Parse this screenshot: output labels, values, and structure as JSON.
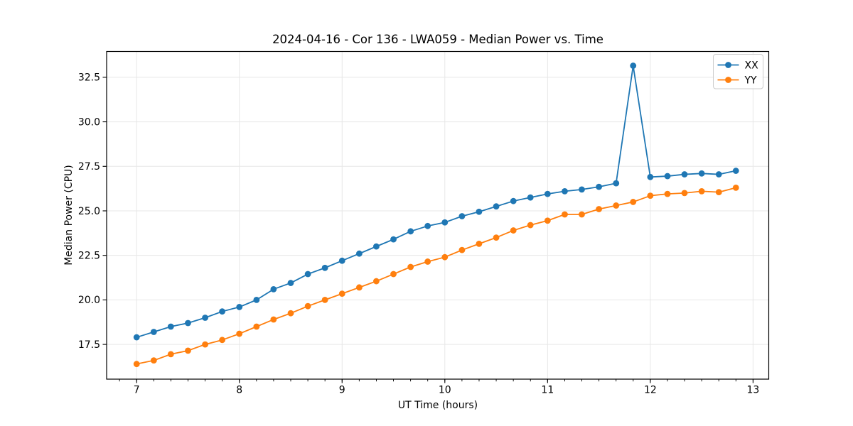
{
  "chart_data": {
    "type": "line",
    "title": "2024-04-16 - Cor 136 - LWA059 - Median Power vs. Time",
    "xlabel": "UT Time (hours)",
    "ylabel": "Median Power (CPU)",
    "x": [
      7.0,
      7.167,
      7.333,
      7.5,
      7.667,
      7.833,
      8.0,
      8.167,
      8.333,
      8.5,
      8.667,
      8.833,
      9.0,
      9.167,
      9.333,
      9.5,
      9.667,
      9.833,
      10.0,
      10.167,
      10.333,
      10.5,
      10.667,
      10.833,
      11.0,
      11.167,
      11.333,
      11.5,
      11.667,
      11.833,
      12.0,
      12.167,
      12.333,
      12.5,
      12.667,
      12.833
    ],
    "series": [
      {
        "name": "XX",
        "color": "#1f77b4",
        "marker": "circle",
        "values": [
          17.9,
          18.2,
          18.5,
          18.7,
          19.0,
          19.35,
          19.6,
          20.0,
          20.6,
          20.95,
          21.45,
          21.8,
          22.2,
          22.6,
          23.0,
          23.4,
          23.85,
          24.15,
          24.35,
          24.7,
          24.95,
          25.25,
          25.55,
          25.75,
          25.95,
          26.1,
          26.2,
          26.35,
          26.55,
          33.15,
          26.9,
          26.95,
          27.05,
          27.1,
          27.05,
          27.25
        ]
      },
      {
        "name": "YY",
        "color": "#ff7f0e",
        "marker": "circle",
        "values": [
          16.4,
          16.6,
          16.95,
          17.15,
          17.5,
          17.75,
          18.1,
          18.5,
          18.9,
          19.25,
          19.65,
          20.0,
          20.35,
          20.7,
          21.05,
          21.45,
          21.85,
          22.15,
          22.4,
          22.8,
          23.15,
          23.5,
          23.9,
          24.2,
          24.45,
          24.8,
          24.8,
          25.1,
          25.3,
          25.5,
          25.85,
          25.95,
          26.0,
          26.1,
          26.05,
          26.3
        ]
      }
    ],
    "xlim": [
      6.708,
      13.153
    ],
    "ylim": [
      15.55,
      33.95
    ],
    "xticks": [
      7,
      8,
      9,
      10,
      11,
      12,
      13
    ],
    "xtick_labels": [
      "7",
      "8",
      "9",
      "10",
      "11",
      "12",
      "13"
    ],
    "yticks": [
      17.5,
      20.0,
      22.5,
      25.0,
      27.5,
      30.0,
      32.5
    ],
    "ytick_labels": [
      "17.5",
      "20.0",
      "22.5",
      "25.0",
      "27.5",
      "30.0",
      "32.5"
    ],
    "x_minor_step": 0.166667,
    "grid": true,
    "legend": {
      "position": "upper right",
      "entries": [
        "XX",
        "YY"
      ]
    },
    "colors": {
      "background": "#ffffff",
      "grid": "#e7e7e7",
      "spine": "#000000",
      "text": "#000000",
      "legend_border": "#cccccc"
    }
  }
}
